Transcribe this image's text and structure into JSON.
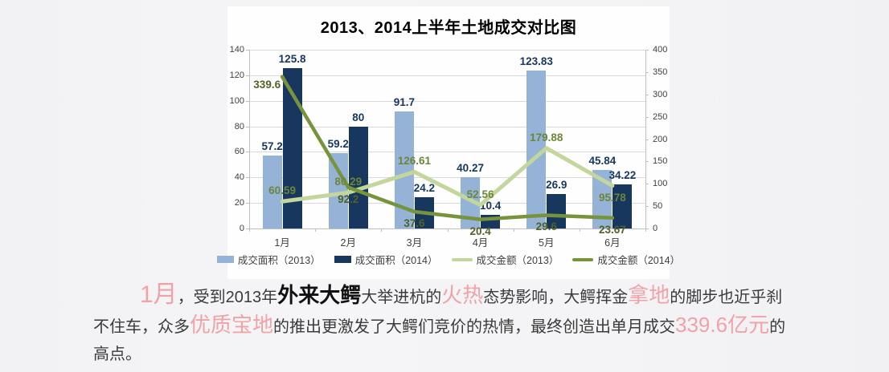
{
  "chart_data": {
    "type": "combo_bar_line",
    "title": "2013、2014上半年土地成交对比图",
    "categories": [
      "1月",
      "2月",
      "3月",
      "4月",
      "5月",
      "6月"
    ],
    "series": [
      {
        "name": "成交面积（2013）",
        "kind": "bar",
        "axis": "left",
        "color": "#95b3d7",
        "label_color": "#17375e",
        "values": [
          57.2,
          59.2,
          91.7,
          40.27,
          123.83,
          45.84
        ]
      },
      {
        "name": "成交面积（2014）",
        "kind": "bar",
        "axis": "left",
        "color": "#17375e",
        "label_color": "#17375e",
        "values": [
          125.8,
          80,
          24.2,
          10.4,
          26.9,
          34.22
        ]
      },
      {
        "name": "成交金额（2013）",
        "kind": "line",
        "axis": "right",
        "color": "#c3d69b",
        "label_color": "#6b8639",
        "values": [
          60.59,
          80.29,
          126.61,
          52.56,
          179.88,
          95.78
        ]
      },
      {
        "name": "成交金额（2014）",
        "kind": "line",
        "axis": "right",
        "color": "#77933c",
        "label_color": "#4f6228",
        "values": [
          339.6,
          92.2,
          37.6,
          20.4,
          29.6,
          23.67
        ]
      }
    ],
    "left_axis": {
      "min": 0,
      "max": 140,
      "ticks": [
        0,
        20,
        40,
        60,
        80,
        100,
        120,
        140
      ]
    },
    "right_axis": {
      "min": 0,
      "max": 400,
      "ticks": [
        0,
        50,
        100,
        150,
        200,
        250,
        300,
        350,
        400
      ]
    },
    "grid": true,
    "legend_position": "bottom"
  },
  "caption": {
    "segments": [
      {
        "text": "1月",
        "style": "p1"
      },
      {
        "text": "，受到2013年",
        "style": "n"
      },
      {
        "text": "外来大鳄",
        "style": "b"
      },
      {
        "text": "大举进杭的",
        "style": "n"
      },
      {
        "text": "火热",
        "style": "p"
      },
      {
        "text": "态势影响，大鳄挥金",
        "style": "n"
      },
      {
        "text": "拿地",
        "style": "p"
      },
      {
        "text": "的脚步也近乎刹不住车，众多",
        "style": "n"
      },
      {
        "text": "优质宝地",
        "style": "p"
      },
      {
        "text": "的推出更激发了大鳄们竞价的热情，最终创造出单月成交",
        "style": "n"
      },
      {
        "text": "339.6亿元",
        "style": "p"
      },
      {
        "text": "的高点。",
        "style": "n"
      }
    ]
  }
}
